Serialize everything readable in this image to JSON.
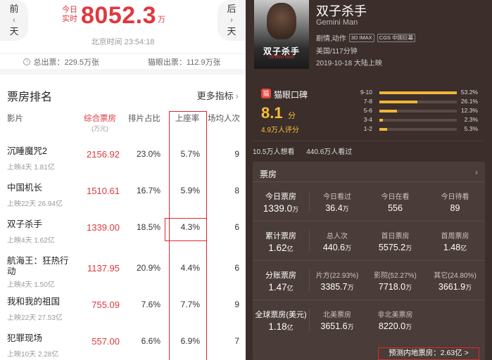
{
  "left": {
    "prev_day": {
      "line1": "前",
      "line2": "一",
      "line3": "天"
    },
    "next_day": {
      "line1": "后",
      "line2": "一",
      "line3": "天"
    },
    "today_label": "今日实时",
    "today_value": "8052.3",
    "today_unit": "万",
    "beijing_time": "北京时间 23:54:18",
    "totals": {
      "total_box_office": "总出票：229.5万张",
      "maoyan_box_office": "猫眼出票：112.9万张"
    },
    "rank_title": "票房排名",
    "more_metrics": "更多指标",
    "headers": {
      "film": "影片",
      "box_office": "综合票房",
      "box_office_unit": "(万元)",
      "share": "排片占比",
      "seat_rate": "上座率",
      "avg": "场均人次"
    },
    "rows": [
      {
        "name": "沉睡魔咒2",
        "meta": "上映4天 1.81亿",
        "box_office": "2156.92",
        "share": "23.0%",
        "seat": "5.7%",
        "avg": "9"
      },
      {
        "name": "中国机长",
        "meta": "上映22天 26.94亿",
        "box_office": "1510.61",
        "share": "16.7%",
        "seat": "5.9%",
        "avg": "8"
      },
      {
        "name": "双子杀手",
        "meta": "上映4天 1.62亿",
        "box_office": "1339.00",
        "share": "18.5%",
        "seat": "4.3%",
        "avg": "6"
      },
      {
        "name": "航海王：狂热行动",
        "meta": "上映4天 1.50亿",
        "box_office": "1137.95",
        "share": "20.9%",
        "seat": "4.4%",
        "avg": "6"
      },
      {
        "name": "我和我的祖国",
        "meta": "上映22天 27.53亿",
        "box_office": "755.09",
        "share": "7.6%",
        "seat": "7.7%",
        "avg": "9"
      },
      {
        "name": "犯罪现场",
        "meta": "上映10天 2.28亿",
        "box_office": "557.00",
        "share": "6.6%",
        "seat": "6.9%",
        "avg": "7"
      }
    ]
  },
  "right": {
    "poster": {
      "title": "双子杀手",
      "sub": "GEMINI MAN"
    },
    "film_title": "双子杀手",
    "film_en": "Gemini Man",
    "genre": "剧情,动作",
    "tags": [
      "3D IMAX",
      "CGS 中国巨幕"
    ],
    "origin": "美国/117分钟",
    "release": "2019-10-18 大陆上映",
    "rating": {
      "label": "猫眼口碑",
      "icon": "猫",
      "score": "8.1",
      "unit": "分",
      "count": "4.9万人评分",
      "distribution": [
        {
          "label": "9-10",
          "pct": "53.2%",
          "value": 53.2
        },
        {
          "label": "7-8",
          "pct": "26.1%",
          "value": 26.1
        },
        {
          "label": "5-6",
          "pct": "12.3%",
          "value": 12.3
        },
        {
          "label": "3-4",
          "pct": "2.3%",
          "value": 2.3
        },
        {
          "label": "1-2",
          "pct": "5.3%",
          "value": 5.3
        }
      ]
    },
    "wants": {
      "want": "10.5万人想看",
      "watched": "440.6万人看过"
    },
    "box_office": {
      "title": "票房",
      "rows": [
        [
          {
            "label": "今日票房",
            "value": "1339.0",
            "unit": "万"
          },
          {
            "label": "今日看过",
            "value": "36.4",
            "unit": "万"
          },
          {
            "label": "今日在看",
            "value": "556",
            "unit": ""
          },
          {
            "label": "今日待看",
            "value": "89",
            "unit": ""
          }
        ],
        [
          {
            "label": "累计票房",
            "value": "1.62",
            "unit": "亿"
          },
          {
            "label": "总人次",
            "value": "440.6",
            "unit": "万"
          },
          {
            "label": "首日票房",
            "value": "5575.2",
            "unit": "万"
          },
          {
            "label": "首周票房",
            "value": "1.48",
            "unit": "亿"
          }
        ],
        [
          {
            "label": "分账票房",
            "value": "1.47",
            "unit": "亿"
          },
          {
            "label": "片方(22.93%)",
            "value": "3385.7",
            "unit": "万"
          },
          {
            "label": "影院(52.27%)",
            "value": "7718.0",
            "unit": "万"
          },
          {
            "label": "其它(24.80%)",
            "value": "3661.9",
            "unit": "万"
          }
        ],
        [
          {
            "label": "全球票房(美元)",
            "value": "1.18",
            "unit": "亿"
          },
          {
            "label": "北美票房",
            "value": "3651.6",
            "unit": "万"
          },
          {
            "label": "非北美票房",
            "value": "8220.0",
            "unit": "万"
          }
        ]
      ],
      "forecast": "预测内地票房：2.63亿 >"
    }
  }
}
